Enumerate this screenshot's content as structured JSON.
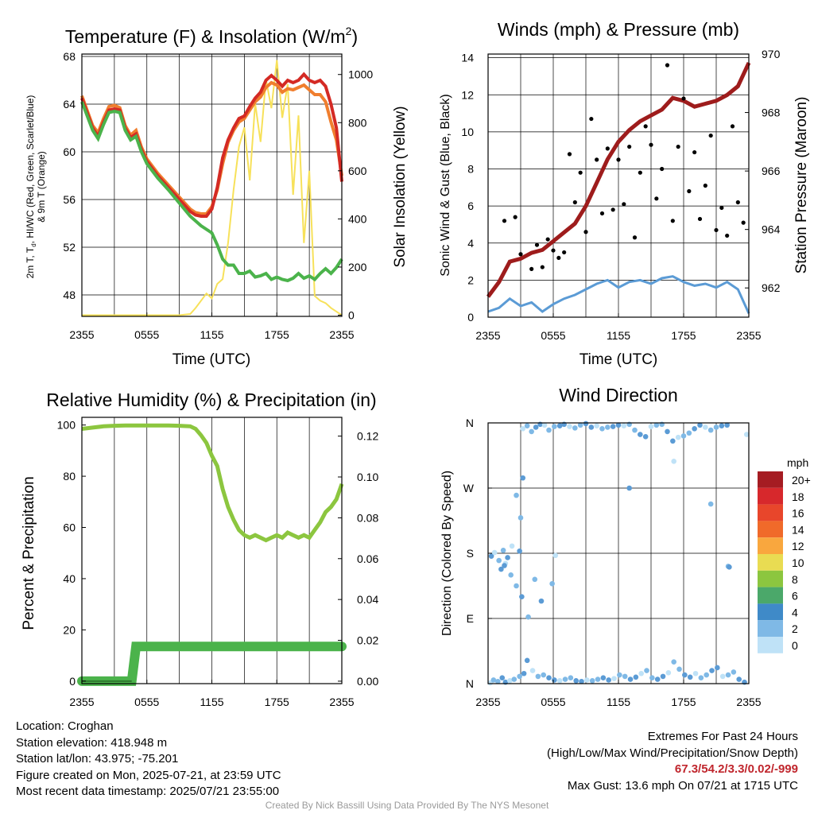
{
  "chart_data": [
    {
      "type": "line",
      "title": "Temperature (F) & Insolation (W/m²)",
      "title_main": "Temperature (F) & Insolation (W/m",
      "title_sup": "2",
      "title_end": ")",
      "xlabel": "Time (UTC)",
      "ylabel_left_line1": "2m T, T",
      "ylabel_left_sub": "d",
      "ylabel_left_line1_end": ", HI/WC (Red, Green, Scarlet/Blue)",
      "ylabel_left_line2": "& 9m T (Orange)",
      "ylabel_right": "Solar Insolation (Yellow)",
      "x_ticks": [
        "2355",
        "0555",
        "1155",
        "1755",
        "2355"
      ],
      "y_left_ticks": [
        48,
        52,
        56,
        60,
        64,
        68
      ],
      "y_left_range": [
        46.2,
        68.2
      ],
      "y_right_ticks": [
        0,
        200,
        400,
        600,
        800,
        1000
      ],
      "y_right_range": [
        -5,
        1085
      ],
      "x_range_hours": [
        0,
        24
      ],
      "colors": {
        "temp": "#d42a24",
        "temp9m": "#f07e2e",
        "dewpoint": "#4bb34b",
        "solar": "#f7e15a"
      },
      "series": [
        {
          "name": "2m T",
          "x": [
            0,
            1,
            1.5,
            2,
            2.5,
            3,
            3.5,
            4,
            4.5,
            5,
            5.5,
            6,
            7,
            8,
            9,
            10,
            10.5,
            11,
            11.5,
            12,
            12.5,
            13,
            13.5,
            14,
            14.5,
            15,
            15.5,
            16,
            16.5,
            17,
            17.5,
            18,
            18.5,
            19,
            19.5,
            20,
            20.5,
            21,
            21.5,
            22,
            22.5,
            23,
            23.5,
            24
          ],
          "y": [
            64.5,
            62,
            61.3,
            62.5,
            63.5,
            63.6,
            63.5,
            62,
            61.2,
            61.5,
            60.2,
            59.2,
            58,
            57,
            56,
            55,
            54.7,
            54.6,
            54.6,
            55.2,
            57,
            59.5,
            61,
            62,
            62.8,
            63,
            63.8,
            64.5,
            65,
            66,
            66.4,
            66,
            65.5,
            66,
            65.8,
            66,
            66.5,
            66,
            65.8,
            66,
            65.5,
            64,
            62,
            57.5
          ]
        },
        {
          "name": "9m T",
          "x": [
            0,
            1,
            1.5,
            2,
            2.5,
            3,
            3.5,
            4,
            4.5,
            5,
            5.5,
            6,
            7,
            8,
            9,
            10,
            10.5,
            11,
            11.5,
            12,
            12.5,
            13,
            13.5,
            14,
            14.5,
            15,
            15.5,
            16,
            16.5,
            17,
            17.5,
            18,
            18.5,
            19,
            19.5,
            20,
            20.5,
            21,
            21.5,
            22,
            22.5,
            23,
            23.5,
            24
          ],
          "y": [
            64.7,
            62.2,
            61.6,
            62.8,
            63.8,
            63.9,
            63.7,
            62.2,
            61.4,
            61.8,
            60.4,
            59.4,
            58.2,
            57.2,
            56.2,
            55.2,
            54.9,
            54.8,
            54.8,
            55.4,
            56.8,
            59,
            60.8,
            61.8,
            62.5,
            62.8,
            63.5,
            64.2,
            64.6,
            65.4,
            65.8,
            65.6,
            65,
            65.3,
            65.2,
            65.4,
            65.6,
            65.2,
            64.8,
            64.8,
            64.2,
            62.5,
            61,
            58
          ]
        },
        {
          "name": "Dewpoint",
          "x": [
            0,
            1,
            1.5,
            2,
            2.5,
            3,
            3.5,
            4,
            4.5,
            5,
            5.5,
            6,
            7,
            8,
            9,
            10,
            10.5,
            11,
            11.5,
            12,
            12.5,
            13,
            13.5,
            14,
            14.5,
            15,
            15.5,
            16,
            16.5,
            17,
            17.5,
            18,
            18.5,
            19,
            19.5,
            20,
            20.5,
            21,
            21.5,
            22,
            22.5,
            23,
            23.5,
            24
          ],
          "y": [
            64.2,
            61.8,
            61.1,
            62.3,
            63.3,
            63.4,
            63.3,
            61.8,
            61,
            61.3,
            60,
            59,
            57.8,
            56.8,
            55.7,
            54.6,
            54.2,
            53.8,
            53.5,
            53.2,
            52.2,
            51,
            50.5,
            50.5,
            49.8,
            49.8,
            50,
            49.5,
            49.6,
            49.8,
            49.3,
            49.5,
            49.3,
            49.2,
            49.4,
            49.8,
            49.4,
            49.6,
            49.3,
            49.8,
            50.2,
            49.8,
            50.3,
            51
          ]
        },
        {
          "name": "Solar Insolation",
          "x": [
            0,
            3,
            6,
            8,
            9,
            10,
            10.5,
            11,
            11.5,
            12,
            12.5,
            13,
            13.5,
            14,
            14.5,
            15,
            15.5,
            16,
            16.5,
            17,
            17.5,
            18,
            18.5,
            19,
            19.5,
            20,
            20.5,
            21,
            21.5,
            22,
            22.5,
            23,
            23.5,
            24
          ],
          "y": [
            0,
            0,
            0,
            0,
            0,
            5,
            30,
            60,
            90,
            70,
            130,
            150,
            300,
            520,
            700,
            780,
            560,
            880,
            720,
            980,
            860,
            1060,
            820,
            960,
            500,
            830,
            300,
            600,
            80,
            60,
            50,
            30,
            15,
            0
          ]
        }
      ]
    },
    {
      "type": "scatter",
      "title": "Winds (mph) & Pressure (mb)",
      "xlabel": "Time (UTC)",
      "ylabel_left": "Sonic Wind & Gust (Blue, Black)",
      "ylabel_right": "Station Pressure (Maroon)",
      "x_ticks": [
        "2355",
        "0555",
        "1155",
        "1755",
        "2355"
      ],
      "y_left_ticks": [
        0,
        2,
        4,
        6,
        8,
        10,
        12,
        14
      ],
      "y_left_range": [
        0,
        14.2
      ],
      "y_right_ticks": [
        962,
        964,
        966,
        968,
        970
      ],
      "y_right_range": [
        961.0,
        970.0
      ],
      "colors": {
        "wind": "#5b9bd5",
        "gust": "#000000",
        "pressure": "#9e1c1c"
      },
      "series": [
        {
          "name": "Sonic Wind",
          "x": [
            0,
            1,
            2,
            3,
            4,
            5,
            6,
            7,
            8,
            9,
            10,
            11,
            12,
            13,
            14,
            15,
            16,
            17,
            18,
            19,
            20,
            21,
            22,
            23,
            24
          ],
          "y": [
            0.3,
            0.5,
            1.0,
            0.6,
            0.8,
            0.3,
            0.7,
            1.0,
            1.2,
            1.5,
            1.8,
            2.0,
            1.6,
            1.9,
            2.0,
            1.8,
            2.1,
            2.2,
            1.9,
            1.7,
            1.8,
            1.6,
            1.9,
            1.5,
            0.2
          ]
        },
        {
          "name": "Station Pressure",
          "x": [
            0,
            1,
            2,
            3,
            4,
            5,
            6,
            7,
            8,
            9,
            10,
            11,
            12,
            13,
            14,
            15,
            16,
            17,
            18,
            19,
            20,
            21,
            22,
            23,
            24
          ],
          "y": [
            961.7,
            962.2,
            962.9,
            963.0,
            963.2,
            963.3,
            963.6,
            963.9,
            964.2,
            964.8,
            965.6,
            966.4,
            967.0,
            967.4,
            967.7,
            967.9,
            968.1,
            968.5,
            968.4,
            968.2,
            968.3,
            968.4,
            968.6,
            968.9,
            969.7
          ]
        },
        {
          "name": "Gust",
          "x": [
            1.5,
            2.5,
            3,
            4,
            4.5,
            5,
            5.5,
            6,
            6.5,
            7,
            7.5,
            8,
            8.5,
            9,
            9.5,
            10,
            10.5,
            11,
            11.5,
            12,
            12.5,
            13,
            13.5,
            14,
            14.5,
            15,
            15.5,
            16,
            16.5,
            17,
            17.5,
            18,
            18.5,
            19,
            19.5,
            20,
            20.5,
            21,
            21.5,
            22,
            22.5,
            23,
            23.5
          ],
          "y": [
            5.2,
            5.4,
            3.4,
            2.6,
            3.9,
            2.7,
            4.2,
            3.6,
            3.2,
            3.5,
            8.8,
            6.2,
            7.8,
            4.6,
            10.7,
            8.5,
            5.6,
            9.1,
            5.8,
            8.5,
            6.1,
            9.2,
            4.3,
            7.8,
            10.3,
            9.3,
            6.4,
            8.0,
            13.6,
            5.2,
            9.2,
            11.8,
            6.8,
            8.9,
            5.3,
            7.1,
            9.8,
            4.7,
            5.9,
            4.4,
            10.3,
            6.2,
            5.1
          ]
        }
      ]
    },
    {
      "type": "line",
      "title": "Relative Humidity (%) & Precipitation (in)",
      "ylabel_left": "Percent & Precipitation",
      "x_ticks": [
        "2355",
        "0555",
        "1155",
        "1755",
        "2355"
      ],
      "y_left_ticks": [
        0,
        20,
        40,
        60,
        80,
        100
      ],
      "y_left_range": [
        -1,
        103
      ],
      "y_right_ticks": [
        "0.00",
        "0.02",
        "0.04",
        "0.06",
        "0.08",
        "0.10",
        "0.12"
      ],
      "y_right_range": [
        -0.0012,
        0.1292
      ],
      "colors": {
        "rh": "#8cc63f",
        "precip": "#4bb34b",
        "precip_line": "#2f7a2f"
      },
      "series": [
        {
          "name": "Relative Humidity",
          "x": [
            0,
            1,
            2,
            3,
            4,
            5,
            6,
            7,
            8,
            9,
            10,
            10.5,
            11,
            11.5,
            12,
            12.5,
            13,
            13.5,
            14,
            14.5,
            15,
            15.5,
            16,
            16.5,
            17,
            17.5,
            18,
            18.5,
            19,
            19.5,
            20,
            20.5,
            21,
            21.5,
            22,
            22.5,
            23,
            23.5,
            24
          ],
          "y": [
            98.5,
            99,
            99.5,
            99.7,
            99.8,
            99.8,
            99.8,
            99.8,
            99.8,
            99.7,
            99.5,
            98.5,
            96,
            93,
            88,
            84,
            75,
            68,
            63,
            59,
            57,
            56,
            57,
            56,
            55,
            56,
            57,
            56,
            58,
            57,
            56,
            57,
            56,
            59,
            62,
            66,
            68,
            71,
            77
          ]
        },
        {
          "name": "Precipitation",
          "x": [
            0,
            1,
            2,
            3,
            4.6,
            5,
            6,
            10,
            15,
            20,
            24
          ],
          "y": [
            0,
            0,
            0,
            0,
            0,
            0.017,
            0.017,
            0.017,
            0.017,
            0.017,
            0.017
          ]
        }
      ]
    },
    {
      "type": "scatter",
      "title": "Wind Direction",
      "ylabel_left": "Direction (Colored By Speed)",
      "x_ticks": [
        "2355",
        "0555",
        "1155",
        "1755",
        "2355"
      ],
      "y_ticks": [
        "N",
        "E",
        "S",
        "W",
        "N"
      ],
      "y_range": [
        0,
        360
      ],
      "legend": {
        "unit": "mph",
        "labels": [
          "20+",
          "18",
          "16",
          "14",
          "12",
          "10",
          "8",
          "6",
          "4",
          "2",
          "0"
        ],
        "colors": [
          "#a51c22",
          "#d7282c",
          "#e8462b",
          "#f06a2a",
          "#f9a73e",
          "#e9dc52",
          "#8cc63f",
          "#4ba86a",
          "#3f8ac8",
          "#7fb9e6",
          "#bfe2f7"
        ]
      },
      "point_colors": {
        "calm": "#bfe2f7",
        "light": "#7fb9e6",
        "moderate": "#5b9bd5"
      },
      "series": [
        {
          "name": "Direction",
          "x": [
            0.2,
            0.5,
            0.9,
            1.3,
            1.6,
            2.0,
            2.4,
            2.9,
            3.3,
            0.3,
            0.6,
            1.0,
            1.4,
            1.8,
            1.2,
            1.6,
            2.1,
            2.6,
            3.1,
            3.6,
            4.1,
            4.6,
            5.1,
            5.6,
            6.1,
            6.6,
            7.1,
            7.6,
            8.1,
            8.6,
            9.1,
            9.6,
            10.1,
            10.6,
            11.1,
            11.6,
            12.1,
            12.6,
            13.1,
            13.6,
            14.1,
            14.6,
            15.1,
            15.6,
            16.1,
            16.6,
            17.1,
            17.6,
            18.1,
            18.6,
            19.1,
            19.6,
            20.1,
            20.6,
            21.1,
            21.6,
            22.1,
            22.6,
            23.1,
            23.6,
            3.2,
            3.6,
            4.0,
            4.4,
            4.8,
            5.2,
            5.6,
            6.1,
            6.6,
            7.0,
            7.5,
            8.0,
            8.5,
            9.0,
            9.5,
            10.0,
            10.5,
            11.0,
            11.5,
            12.0,
            12.5,
            13.0,
            13.5,
            14.0,
            14.5,
            15.0,
            15.5,
            16.0,
            16.5,
            17.0,
            17.5,
            18.0,
            18.5,
            19.0,
            19.5,
            20.0,
            20.5,
            21.0,
            21.5,
            22.0,
            23.8,
            2.6,
            3.0,
            2.9,
            1.5,
            2.2,
            3.7,
            5.9,
            4.9,
            13.0,
            17.1,
            20.5,
            22.1,
            22.2,
            3.2,
            6.2,
            4.3
          ],
          "y": [
            1,
            5,
            3,
            8,
            2,
            4,
            6,
            10,
            14,
            176,
            181,
            170,
            184,
            174,
            158,
            166,
            150,
            135,
            120,
            32,
            18,
            10,
            12,
            8,
            5,
            4,
            6,
            8,
            4,
            3,
            5,
            4,
            6,
            8,
            5,
            7,
            12,
            10,
            6,
            9,
            14,
            18,
            8,
            6,
            10,
            15,
            30,
            20,
            12,
            9,
            14,
            8,
            12,
            18,
            22,
            10,
            12,
            16,
            6,
            2,
            352,
            356,
            348,
            354,
            358,
            357,
            350,
            355,
            356,
            358,
            355,
            353,
            357,
            359,
            354,
            356,
            352,
            354,
            355,
            357,
            356,
            358,
            350,
            344,
            341,
            355,
            357,
            358,
            348,
            335,
            340,
            342,
            346,
            352,
            357,
            354,
            350,
            354,
            356,
            357,
            344,
            260,
            229,
            183,
            163,
            190,
            92,
            138,
            114,
            270,
            307,
            248,
            162,
            161,
            284,
            177,
            144
          ]
        }
      ]
    }
  ],
  "footer_left": {
    "location": "Location: Croghan",
    "elevation": "Station elevation: 418.948 m",
    "latlon": "Station lat/lon: 43.975; -75.201",
    "created": "Figure created on Mon, 2025-07-21, at 23:59 UTC",
    "recent": "Most recent data timestamp: 2025/07/21 23:55:00"
  },
  "footer_right": {
    "line1": "Extremes For Past 24 Hours",
    "line2": "(High/Low/Max Wind/Precipitation/Snow Depth)",
    "extremes": "67.3/54.2/3.3/0.02/-999",
    "gust": "Max Gust: 13.6 mph On 07/21 at 1715 UTC"
  },
  "credit": "Created By Nick Bassill Using Data Provided By The NYS Mesonet"
}
